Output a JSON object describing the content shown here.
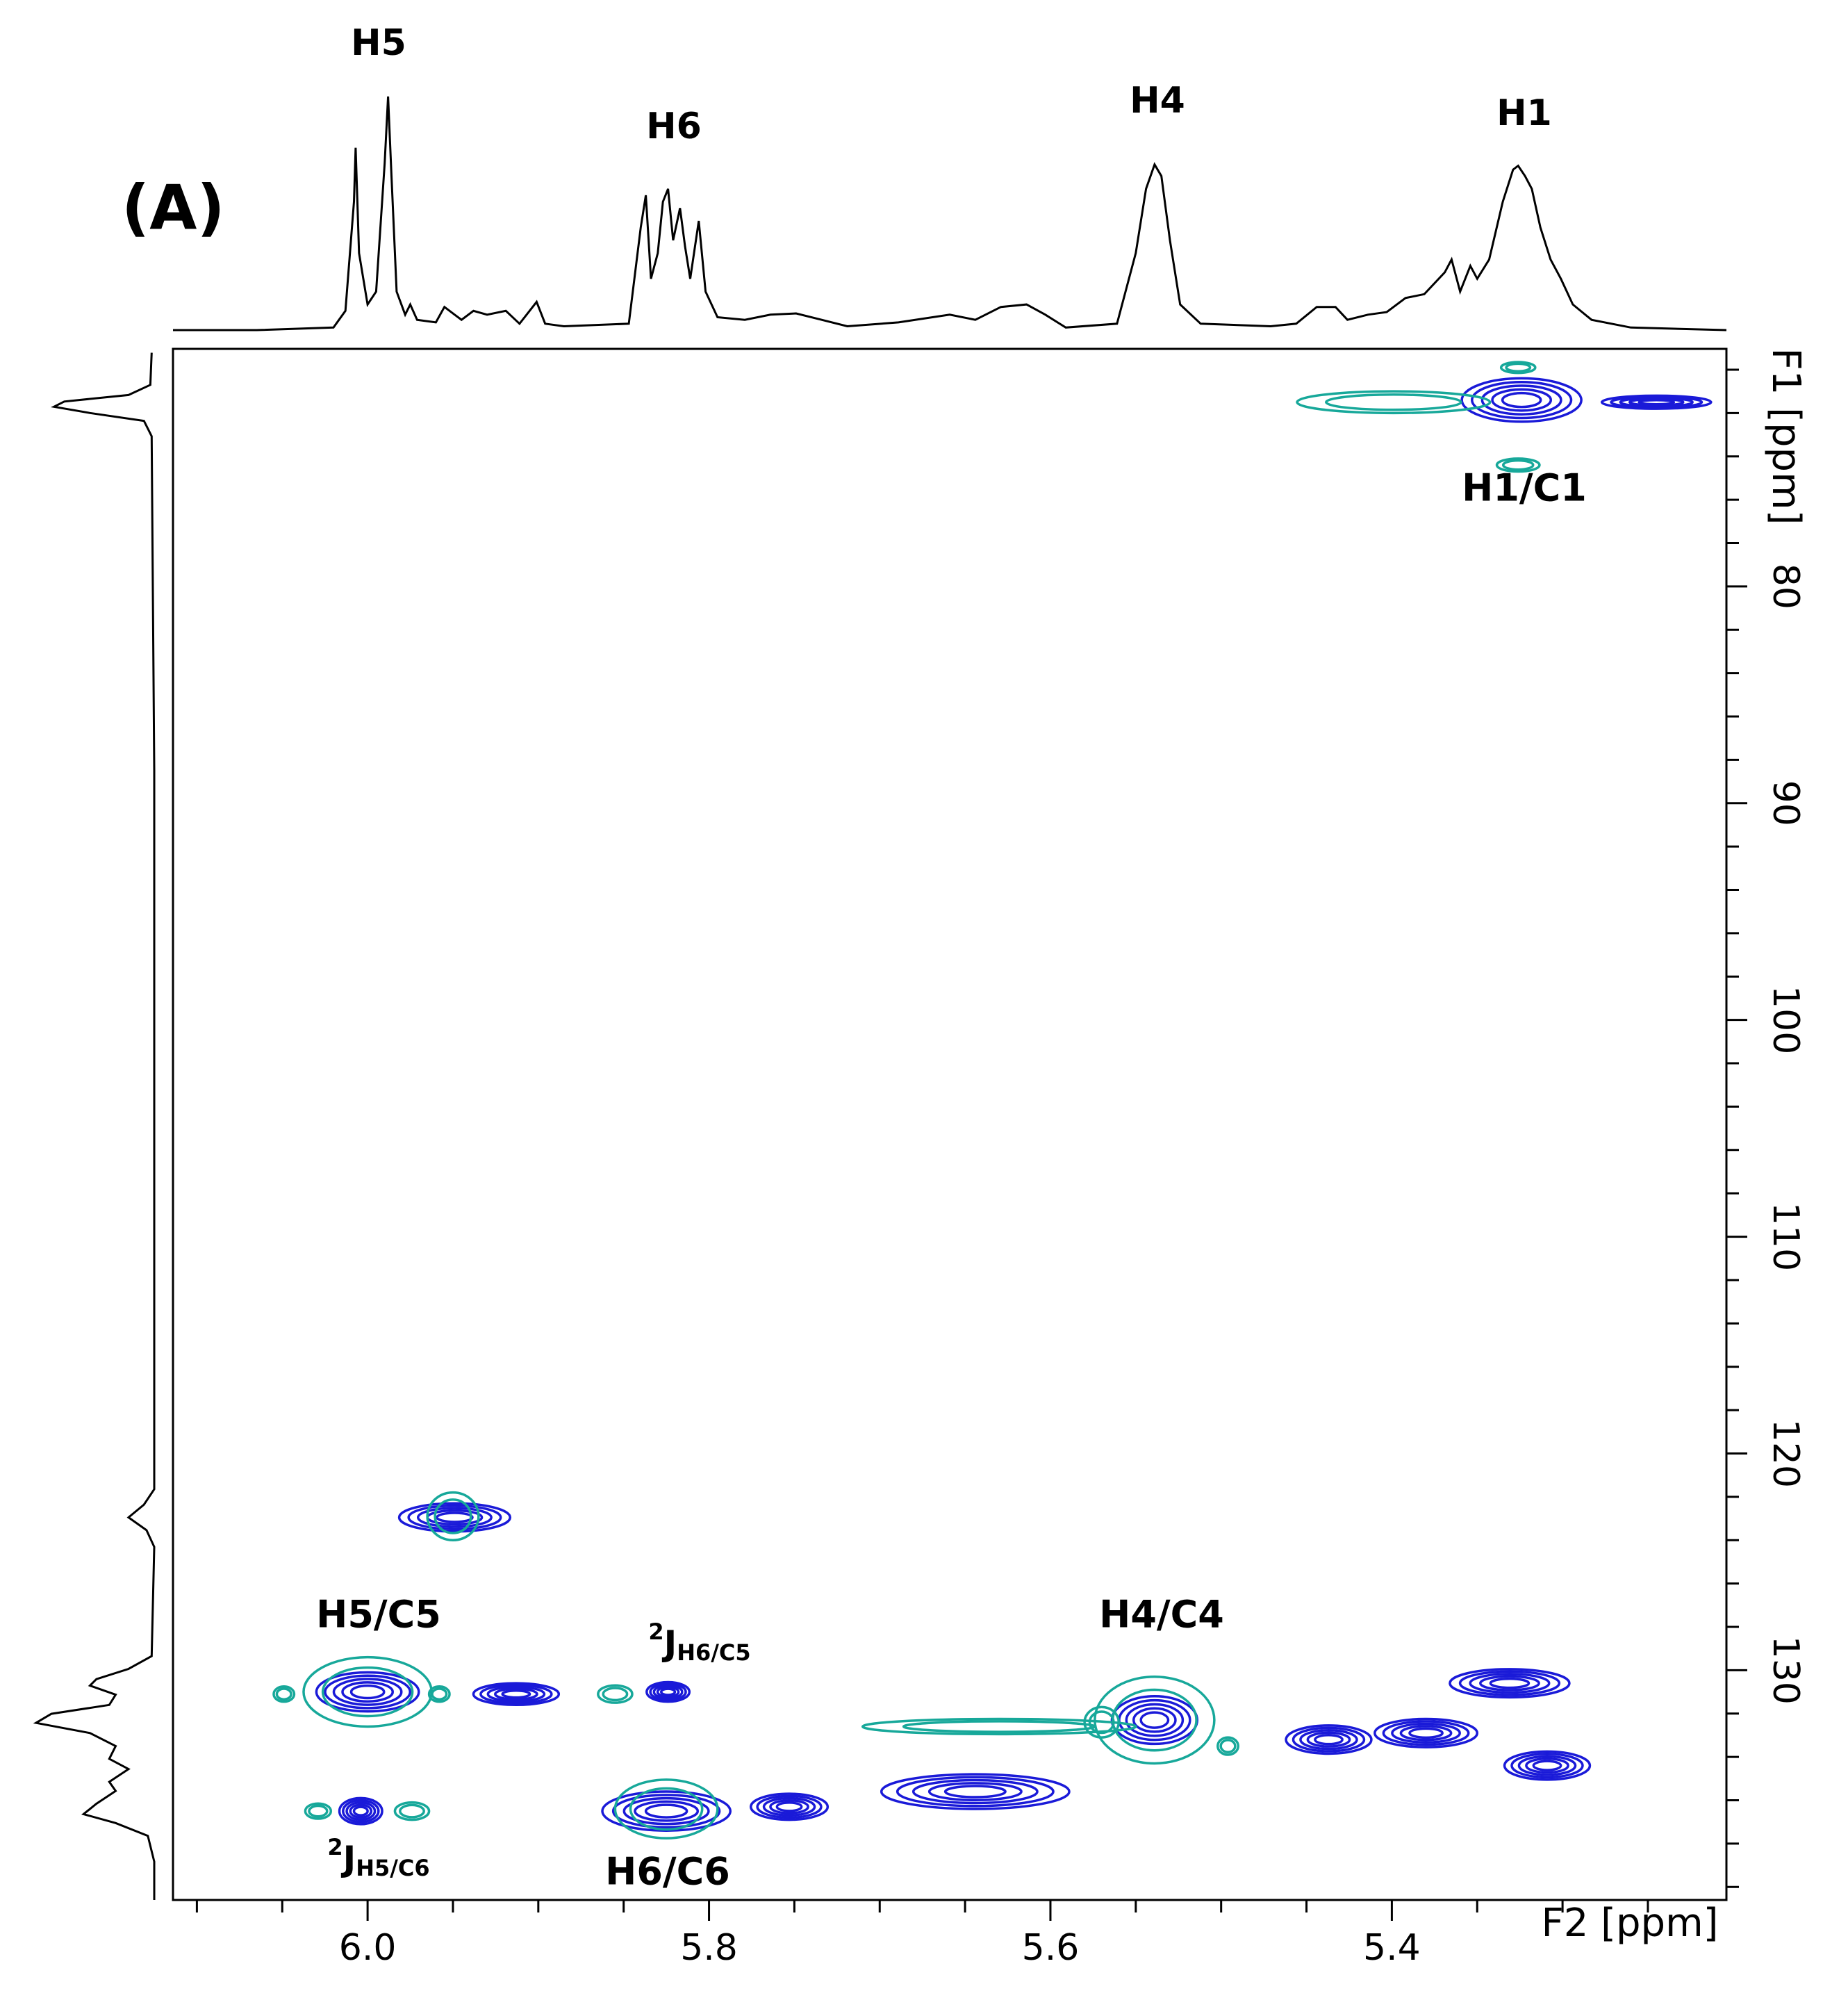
{
  "chart_data": {
    "type": "contour",
    "title": "(A)",
    "xlabel": "F2 [ppm]",
    "ylabel": "F1 [ppm]",
    "xlim": [
      6.114,
      5.204
    ],
    "ylim": [
      69.04,
      140.6
    ],
    "xticks": [
      {
        "value": 6,
        "label": "6.0"
      },
      5.8,
      5.6,
      5.4
    ],
    "yticks": [
      80,
      90,
      100,
      110,
      120,
      130
    ],
    "xminorticks": [
      6.1,
      6.05,
      5.95,
      5.9,
      5.85,
      5.75,
      5.7,
      5.65,
      5.55,
      5.5,
      5.45,
      5.35,
      5.3,
      5.25
    ],
    "yminorticks": [
      70,
      72,
      74,
      76,
      78,
      82,
      84,
      86,
      88,
      92,
      94,
      96,
      98,
      102,
      104,
      106,
      108,
      112,
      114,
      116,
      118,
      122,
      124,
      126,
      128,
      132,
      134,
      136,
      138,
      140
    ],
    "series": [
      {
        "color": "#1a1ad8",
        "x": [
          5.324,
          5.245,
          5.949,
          6.0,
          5.913,
          5.824,
          5.539,
          5.437,
          5.38,
          5.331,
          5.309,
          6.004,
          5.825,
          5.753,
          5.644
        ],
        "values": [
          71.4,
          71.5,
          122.95,
          131.0,
          131.1,
          131.0,
          132.3,
          133.2,
          132.9,
          130.6,
          134.4,
          136.5,
          136.5,
          136.3,
          135.6
        ],
        "x_width": [
          0.07,
          0.064,
          0.065,
          0.06,
          0.05,
          0.025,
          0.05,
          0.05,
          0.06,
          0.07,
          0.05,
          0.025,
          0.075,
          0.045,
          0.11
        ],
        "y_width": [
          2.0,
          0.6,
          1.3,
          1.8,
          1.0,
          0.9,
          2.2,
          1.3,
          1.3,
          1.3,
          1.3,
          1.2,
          1.8,
          1.2,
          1.6
        ]
      },
      {
        "color": "#17a89a",
        "x": [
          5.399,
          5.326,
          5.326,
          6.0,
          6.049,
          5.958,
          5.855,
          5.95,
          5.57,
          5.539,
          5.63,
          6.029,
          5.974,
          5.825,
          5.496
        ],
        "values": [
          71.5,
          69.9,
          74.4,
          131.0,
          131.1,
          131.1,
          131.1,
          122.9,
          132.4,
          132.3,
          132.6,
          136.5,
          136.5,
          136.4,
          133.5
        ],
        "x_width": [
          0.113,
          0.02,
          0.025,
          0.075,
          0.012,
          0.012,
          0.02,
          0.03,
          0.02,
          0.07,
          0.16,
          0.015,
          0.02,
          0.06,
          0.012
        ],
        "y_width": [
          1.0,
          0.5,
          0.6,
          3.2,
          0.7,
          0.7,
          0.8,
          2.2,
          1.4,
          4.0,
          0.7,
          0.7,
          0.8,
          2.7,
          0.8
        ]
      }
    ],
    "projection_top": {
      "color": "#000000",
      "lim": [
        0,
        190
      ],
      "x": [
        6.114,
        6.065,
        6.02,
        6.013,
        6.008,
        6.007,
        6.005,
        6.0,
        5.995,
        5.99,
        5.988,
        5.986,
        5.983,
        5.978,
        5.975,
        5.971,
        5.96,
        5.955,
        5.949,
        5.945,
        5.938,
        5.93,
        5.919,
        5.911,
        5.901,
        5.896,
        5.885,
        5.847,
        5.84,
        5.837,
        5.834,
        5.83,
        5.827,
        5.824,
        5.821,
        5.817,
        5.814,
        5.811,
        5.806,
        5.802,
        5.795,
        5.779,
        5.764,
        5.749,
        5.734,
        5.719,
        5.689,
        5.659,
        5.644,
        5.629,
        5.614,
        5.603,
        5.591,
        5.561,
        5.55,
        5.544,
        5.539,
        5.535,
        5.53,
        5.524,
        5.512,
        5.471,
        5.456,
        5.444,
        5.433,
        5.426,
        5.414,
        5.403,
        5.392,
        5.381,
        5.369,
        5.365,
        5.36,
        5.354,
        5.35,
        5.343,
        5.335,
        5.329,
        5.326,
        5.322,
        5.318,
        5.313,
        5.307,
        5.301,
        5.294,
        5.283,
        5.26,
        5.204
      ],
      "values": [
        0,
        0,
        2,
        15,
        100,
        142,
        60,
        20,
        30,
        130,
        182,
        120,
        30,
        12,
        20,
        8,
        6,
        18,
        12,
        8,
        15,
        12,
        15,
        5,
        22,
        5,
        3,
        5,
        80,
        105,
        40,
        60,
        100,
        110,
        70,
        95,
        65,
        40,
        85,
        30,
        10,
        8,
        12,
        13,
        8,
        3,
        6,
        12,
        8,
        18,
        20,
        12,
        2,
        5,
        60,
        110,
        129,
        120,
        70,
        20,
        5,
        3,
        5,
        18,
        18,
        8,
        12,
        14,
        25,
        28,
        45,
        55,
        30,
        50,
        40,
        55,
        100,
        125,
        128,
        120,
        110,
        80,
        55,
        40,
        20,
        8,
        2,
        0
      ],
      "labels": [
        "H5",
        "H6",
        "H4",
        "H1"
      ]
    },
    "projection_left": {
      "color": "#000000",
      "lim": [
        0,
        100
      ],
      "y": [
        69.22,
        70.7,
        71.17,
        71.47,
        71.71,
        72.0,
        72.36,
        73.07,
        88.47,
        121.65,
        122.36,
        122.95,
        123.54,
        124.31,
        129.35,
        129.94,
        130.41,
        130.71,
        131.13,
        131.6,
        132.01,
        132.43,
        132.9,
        133.5,
        134.09,
        134.56,
        135.15,
        135.57,
        136.16,
        136.64,
        137.05,
        137.64,
        138.83,
        140.6
      ],
      "values": [
        2,
        3,
        20,
        70,
        78,
        50,
        8,
        2,
        0,
        0,
        8,
        20,
        6,
        0,
        2,
        20,
        45,
        50,
        30,
        35,
        80,
        92,
        50,
        30,
        35,
        20,
        35,
        30,
        45,
        55,
        30,
        5,
        0,
        0
      ]
    },
    "annotations": [
      "H1/C1",
      "H5/C5",
      "H4/C4",
      "H6/C6",
      {
        "sup": "2",
        "base": "J",
        "sub": "H6/C5"
      },
      {
        "sup": "2",
        "base": "J",
        "sub": "H5/C6"
      }
    ]
  }
}
